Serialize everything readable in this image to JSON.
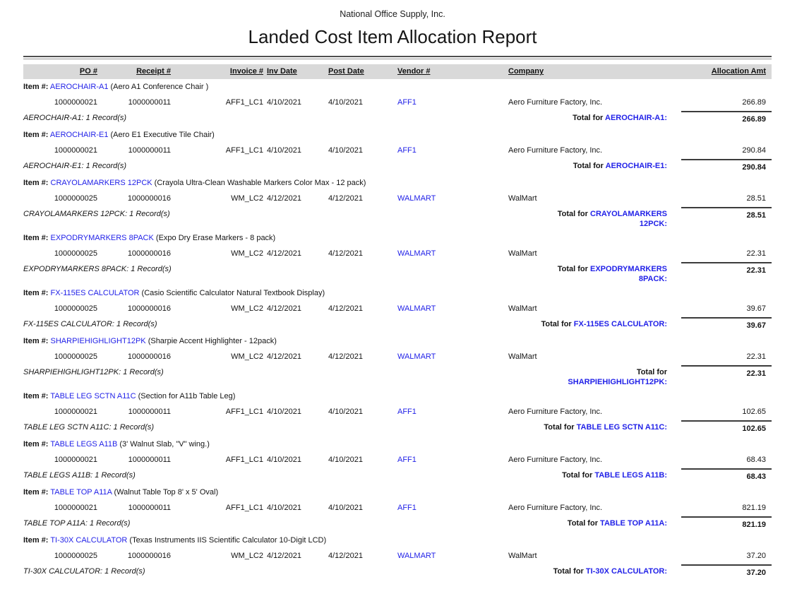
{
  "report": {
    "company": "National Office Supply, Inc.",
    "title": "Landed Cost Item Allocation Report"
  },
  "labels": {
    "item_prefix": "Item #:",
    "total_prefix": "Total for",
    "record_suffix": "1 Record(s)"
  },
  "table": {
    "columns": [
      "PO #",
      "Receipt #",
      "Invoice #",
      "Inv Date",
      "Post Date",
      "Vendor #",
      "Company",
      "Allocation Amt"
    ]
  },
  "colors": {
    "link_blue": "#2222E8",
    "header_bar_bg": "#D9D9D9"
  },
  "groups": [
    {
      "item_number": "AEROCHAIR-A1",
      "item_description": "(Aero A1 Conference Chair )",
      "rows": [
        {
          "po": "1000000021",
          "receipt": "1000000011",
          "invoice": "AFF1_LC1",
          "inv_date": "4/10/2021",
          "post_date": "4/10/2021",
          "vendor": "AFF1",
          "company": "Aero Furniture Factory, Inc.",
          "amount": "266.89"
        }
      ],
      "record_count": "AEROCHAIR-A1: 1 Record(s)",
      "total_item_lines": [
        "AEROCHAIR-A1:"
      ],
      "total_amount": "266.89"
    },
    {
      "item_number": "AEROCHAIR-E1",
      "item_description": "(Aero E1 Executive Tile Chair)",
      "rows": [
        {
          "po": "1000000021",
          "receipt": "1000000011",
          "invoice": "AFF1_LC1",
          "inv_date": "4/10/2021",
          "post_date": "4/10/2021",
          "vendor": "AFF1",
          "company": "Aero Furniture Factory, Inc.",
          "amount": "290.84"
        }
      ],
      "record_count": "AEROCHAIR-E1: 1 Record(s)",
      "total_item_lines": [
        "AEROCHAIR-E1:"
      ],
      "total_amount": "290.84"
    },
    {
      "item_number": "CRAYOLAMARKERS 12PCK",
      "item_description": "(Crayola Ultra-Clean Washable Markers Color Max - 12 pack)",
      "rows": [
        {
          "po": "1000000025",
          "receipt": "1000000016",
          "invoice": "WM_LC2",
          "inv_date": "4/12/2021",
          "post_date": "4/12/2021",
          "vendor": "WALMART",
          "company": "WalMart",
          "amount": "28.51"
        }
      ],
      "record_count": "CRAYOLAMARKERS 12PCK: 1 Record(s)",
      "total_item_lines": [
        "CRAYOLAMARKERS",
        "12PCK:"
      ],
      "total_amount": "28.51"
    },
    {
      "item_number": "EXPODRYMARKERS 8PACK",
      "item_description": "(Expo Dry Erase Markers - 8 pack)",
      "rows": [
        {
          "po": "1000000025",
          "receipt": "1000000016",
          "invoice": "WM_LC2",
          "inv_date": "4/12/2021",
          "post_date": "4/12/2021",
          "vendor": "WALMART",
          "company": "WalMart",
          "amount": "22.31"
        }
      ],
      "record_count": "EXPODRYMARKERS 8PACK: 1 Record(s)",
      "total_item_lines": [
        "EXPODRYMARKERS",
        "8PACK:"
      ],
      "total_amount": "22.31"
    },
    {
      "item_number": "FX-115ES CALCULATOR",
      "item_description": "(Casio Scientific Calculator Natural Textbook Display)",
      "rows": [
        {
          "po": "1000000025",
          "receipt": "1000000016",
          "invoice": "WM_LC2",
          "inv_date": "4/12/2021",
          "post_date": "4/12/2021",
          "vendor": "WALMART",
          "company": "WalMart",
          "amount": "39.67"
        }
      ],
      "record_count": "FX-115ES CALCULATOR: 1 Record(s)",
      "total_item_lines": [
        "FX-115ES CALCULATOR:"
      ],
      "total_amount": "39.67"
    },
    {
      "item_number": "SHARPIEHIGHLIGHT12PK",
      "item_description": "(Sharpie Accent Highlighter - 12pack)",
      "rows": [
        {
          "po": "1000000025",
          "receipt": "1000000016",
          "invoice": "WM_LC2",
          "inv_date": "4/12/2021",
          "post_date": "4/12/2021",
          "vendor": "WALMART",
          "company": "WalMart",
          "amount": "22.31"
        }
      ],
      "record_count": "SHARPIEHIGHLIGHT12PK: 1 Record(s)",
      "total_item_lines": [
        "",
        "SHARPIEHIGHLIGHT12PK:"
      ],
      "total_amount": "22.31"
    },
    {
      "item_number": "TABLE LEG SCTN A11C",
      "item_description": "(Section for A11b Table Leg)",
      "rows": [
        {
          "po": "1000000021",
          "receipt": "1000000011",
          "invoice": "AFF1_LC1",
          "inv_date": "4/10/2021",
          "post_date": "4/10/2021",
          "vendor": "AFF1",
          "company": "Aero Furniture Factory, Inc.",
          "amount": "102.65"
        }
      ],
      "record_count": "TABLE LEG SCTN A11C: 1 Record(s)",
      "total_item_lines": [
        "TABLE LEG SCTN A11C:"
      ],
      "total_amount": "102.65"
    },
    {
      "item_number": "TABLE LEGS A11B",
      "item_description": "(3' Walnut Slab, \"V\" wing.)",
      "rows": [
        {
          "po": "1000000021",
          "receipt": "1000000011",
          "invoice": "AFF1_LC1",
          "inv_date": "4/10/2021",
          "post_date": "4/10/2021",
          "vendor": "AFF1",
          "company": "Aero Furniture Factory, Inc.",
          "amount": "68.43"
        }
      ],
      "record_count": "TABLE LEGS A11B: 1 Record(s)",
      "total_item_lines": [
        "TABLE LEGS A11B:"
      ],
      "total_amount": "68.43"
    },
    {
      "item_number": "TABLE TOP A11A",
      "item_description": "(Walnut Table Top 8' x 5' Oval)",
      "rows": [
        {
          "po": "1000000021",
          "receipt": "1000000011",
          "invoice": "AFF1_LC1",
          "inv_date": "4/10/2021",
          "post_date": "4/10/2021",
          "vendor": "AFF1",
          "company": "Aero Furniture Factory, Inc.",
          "amount": "821.19"
        }
      ],
      "record_count": "TABLE TOP A11A: 1 Record(s)",
      "total_item_lines": [
        "TABLE TOP A11A:"
      ],
      "total_amount": "821.19"
    },
    {
      "item_number": "TI-30X CALCULATOR",
      "item_description": "(Texas Instruments IIS Scientific Calculator 10-Digit LCD)",
      "rows": [
        {
          "po": "1000000025",
          "receipt": "1000000016",
          "invoice": "WM_LC2",
          "inv_date": "4/12/2021",
          "post_date": "4/12/2021",
          "vendor": "WALMART",
          "company": "WalMart",
          "amount": "37.20"
        }
      ],
      "record_count": "TI-30X CALCULATOR: 1 Record(s)",
      "total_item_lines": [
        "TI-30X CALCULATOR:"
      ],
      "total_amount": "37.20"
    }
  ]
}
